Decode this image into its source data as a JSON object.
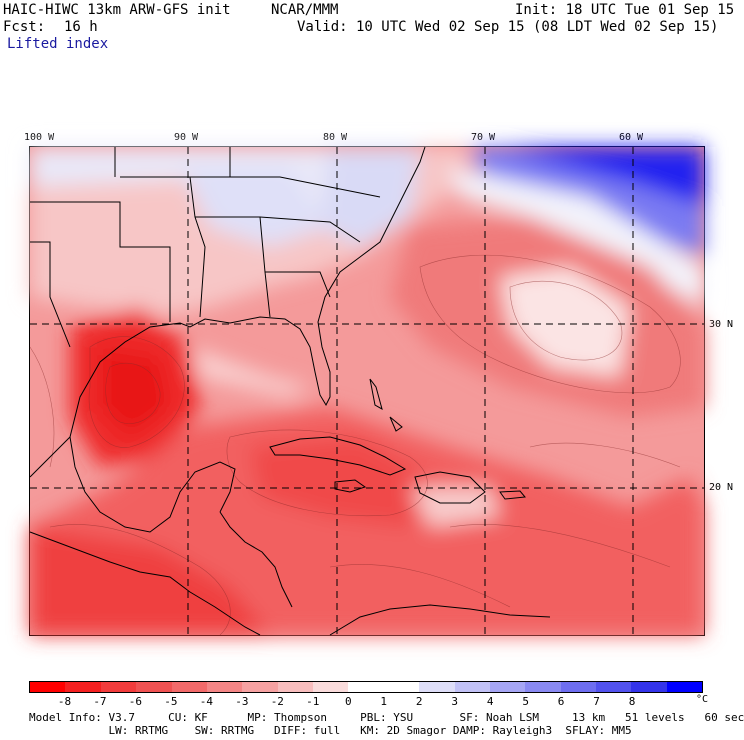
{
  "header": {
    "model": "HAIC-HIWC 13km ARW-GFS init",
    "org": "NCAR/MMM",
    "init": "Init: 18 UTC Tue 01 Sep 15",
    "fcst_label": "Fcst:",
    "fcst_value": "16 h",
    "valid": "Valid: 10 UTC Wed 02 Sep 15 (08 LDT Wed 02 Sep 15)",
    "field": "Lifted index"
  },
  "map": {
    "lon_labels": [
      "100 W",
      "90 W",
      "80 W",
      "70 W",
      "60 W"
    ],
    "lat_labels": [
      "30 N",
      "20 N"
    ]
  },
  "colorbar": {
    "colors": [
      "#ff0000",
      "#f52020",
      "#f23c3c",
      "#f05252",
      "#f26a6a",
      "#f48686",
      "#f6a2a2",
      "#f8bebe",
      "#fadcdc",
      "#ffffff",
      "#ffffff",
      "#dedef8",
      "#c2c2f6",
      "#a6a6f4",
      "#8a8af2",
      "#6e6ef0",
      "#5252ee",
      "#3434ea",
      "#0000ff"
    ],
    "ticks": [
      "-8",
      "-7",
      "-6",
      "-5",
      "-4",
      "-3",
      "-2",
      "-1",
      "0",
      "1",
      "2",
      "3",
      "4",
      "5",
      "6",
      "7",
      "8"
    ],
    "unit": "°C"
  },
  "footer": {
    "line1": "Model Info: V3.7     CU: KF      MP: Thompson     PBL: YSU       SF: Noah LSM     13 km   51 levels   60 sec",
    "line2": "            LW: RRTMG    SW: RRTMG   DIFF: full   KM: 2D Smagor DAMP: Rayleigh3  SFLAY: MM5"
  }
}
